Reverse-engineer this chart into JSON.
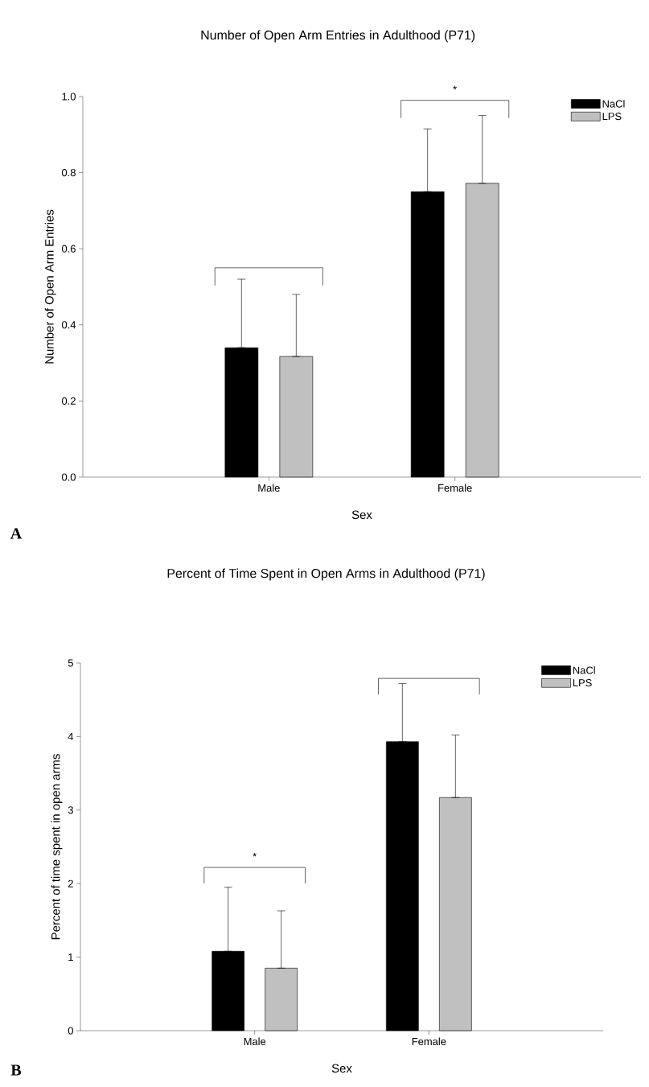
{
  "chart_data": [
    {
      "type": "bar",
      "title": "Number of Open Arm Entries in Adulthood (P71)",
      "xlabel": "Sex",
      "ylabel": "Number of Open Arm Entries",
      "categories": [
        "Male",
        "Female"
      ],
      "series": [
        {
          "name": "NaCl",
          "color": "#000000",
          "values": [
            0.34,
            0.75
          ],
          "errors": [
            [
              0.34,
              0.52
            ],
            [
              0.75,
              0.915
            ]
          ]
        },
        {
          "name": "LPS",
          "color": "#c0c0c0",
          "values": [
            0.317,
            0.772
          ],
          "errors": [
            [
              0.317,
              0.48
            ],
            [
              0.772,
              0.95
            ]
          ]
        }
      ],
      "ylim": [
        0,
        1.0
      ],
      "yticks": [
        {
          "value": 0,
          "label": "0.0"
        },
        {
          "value": 0.2,
          "label": "0.2"
        },
        {
          "value": 0.4,
          "label": "0.4"
        },
        {
          "value": 0.6,
          "label": "0.6"
        },
        {
          "value": 0.8,
          "label": "0.8"
        },
        {
          "value": 1.0,
          "label": "1.0"
        }
      ],
      "legend": "top right",
      "grid": false,
      "annotations": [
        "*",
        "A"
      ]
    },
    {
      "type": "bar",
      "title": "Percent of Time Spent in Open Arms in Adulthood (P71)",
      "xlabel": "Sex",
      "ylabel": "Percent of time spent in open arms",
      "categories": [
        "Male",
        "Female"
      ],
      "series": [
        {
          "name": "NaCl",
          "color": "#000000",
          "values": [
            1.08,
            3.93
          ],
          "errors": [
            [
              1.08,
              1.95
            ],
            [
              3.93,
              4.72
            ]
          ]
        },
        {
          "name": "LPS",
          "color": "#c0c0c0",
          "values": [
            0.85,
            3.17
          ],
          "errors": [
            [
              0.85,
              1.63
            ],
            [
              3.17,
              4.02
            ]
          ]
        }
      ],
      "ylim": [
        0,
        5
      ],
      "yticks": [
        0,
        1,
        2,
        3,
        4,
        5
      ],
      "legend": "top right",
      "grid": false,
      "annotations": [
        "*",
        "B"
      ]
    }
  ]
}
